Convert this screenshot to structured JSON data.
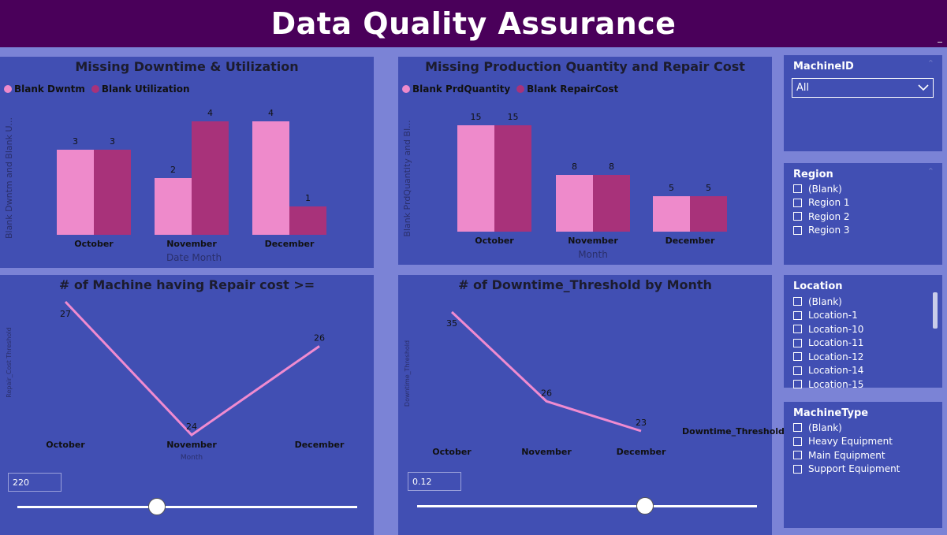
{
  "header": {
    "title": "Data Quality Assurance"
  },
  "colors": {
    "pink": "#ee8acb",
    "magenta": "#a8327a",
    "line": "#f08bd0",
    "panel": "#414fb3",
    "header_bg": "#4a005a"
  },
  "panels": {
    "downtime_util": {
      "title": "Missing Downtime & Utilization",
      "legend": [
        "Blank Dwntm",
        "Blank Utilization"
      ]
    },
    "prod_repair": {
      "title": "Missing Production Quantity and Repair Cost",
      "legend": [
        "Blank PrdQuantity",
        "Blank RepairCost"
      ]
    },
    "machine_repair": {
      "title": "# of Machine having Repair cost >="
    },
    "downtime_threshold": {
      "title": "# of Downtime_Threshold by Month"
    }
  },
  "sliders": {
    "repair": {
      "value": "220",
      "level": 0.41
    },
    "downtime": {
      "value": "0.12",
      "level": 0.67
    }
  },
  "slicers": {
    "machine_id": {
      "title": "MachineID",
      "selected": "All"
    },
    "region": {
      "title": "Region",
      "items": [
        "(Blank)",
        "Region 1",
        "Region 2",
        "Region 3"
      ]
    },
    "location": {
      "title": "Location",
      "items": [
        "(Blank)",
        "Location-1",
        "Location-10",
        "Location-11",
        "Location-12",
        "Location-14",
        "Location-15"
      ]
    },
    "machine_type": {
      "title": "MachineType",
      "items": [
        "(Blank)",
        "Heavy Equipment",
        "Main Equipment",
        "Support Equipment"
      ]
    }
  },
  "chart_data": [
    {
      "type": "bar",
      "title": "Missing Downtime & Utilization",
      "categories": [
        "October",
        "November",
        "December"
      ],
      "series": [
        {
          "name": "Blank Dwntm",
          "values": [
            3,
            2,
            4
          ]
        },
        {
          "name": "Blank Utilization",
          "values": [
            3,
            4,
            1
          ]
        }
      ],
      "xlabel": "Date Month",
      "ylabel": "Blank Dwntm and Blank U...",
      "ylim": [
        0,
        4
      ]
    },
    {
      "type": "bar",
      "title": "Missing Production Quantity and Repair Cost",
      "categories": [
        "October",
        "November",
        "December"
      ],
      "series": [
        {
          "name": "Blank PrdQuantity",
          "values": [
            15,
            8,
            5
          ]
        },
        {
          "name": "Blank RepairCost",
          "values": [
            15,
            8,
            5
          ]
        }
      ],
      "xlabel": "Month",
      "ylabel": "Blank PrdQuantity and Bl...",
      "ylim": [
        0,
        15
      ]
    },
    {
      "type": "line",
      "title": "# of Machine having Repair cost >=",
      "categories": [
        "October",
        "November",
        "December"
      ],
      "series": [
        {
          "values": [
            27,
            24,
            26
          ]
        }
      ],
      "xlabel": "Month",
      "ylabel": "Repair_Cost Threshold",
      "ylim": [
        24,
        27
      ]
    },
    {
      "type": "line",
      "title": "# of Downtime_Threshold by Month",
      "categories": [
        "October",
        "November",
        "December"
      ],
      "series": [
        {
          "name": "Downtime_Threshold",
          "values": [
            35,
            26,
            23
          ]
        }
      ],
      "xlabel": "",
      "ylabel": "Downtime_Threshold",
      "ylim": [
        23,
        35
      ]
    }
  ]
}
